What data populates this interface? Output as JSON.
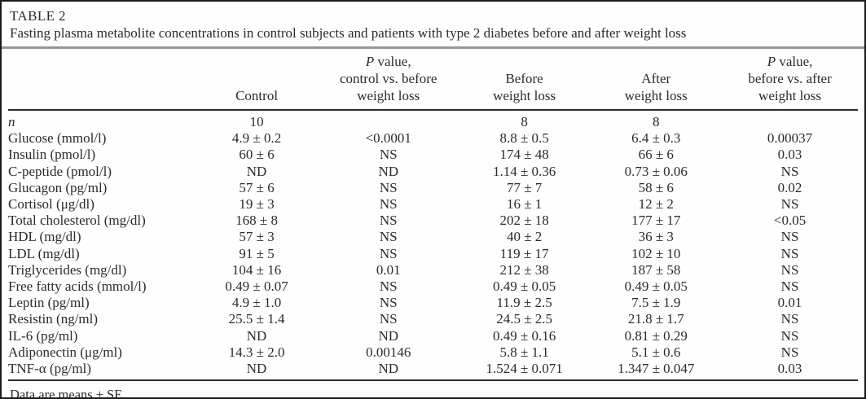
{
  "title": "TABLE 2",
  "caption": "Fasting plasma metabolite concentrations in control subjects and patients with type 2 diabetes before and after weight loss",
  "table": {
    "headers": [
      {
        "label": ""
      },
      {
        "line1": "Control"
      },
      {
        "line1_italic": "P",
        "line1_rest": " value,",
        "line2": "control vs. before",
        "line3": "weight loss"
      },
      {
        "line1": "Before",
        "line2": "weight loss"
      },
      {
        "line1": "After",
        "line2": "weight loss"
      },
      {
        "line1_italic": "P",
        "line1_rest": " value,",
        "line2": "before vs. after",
        "line3": "weight loss"
      }
    ],
    "rows": [
      {
        "label": "n",
        "italic_label": true,
        "values": [
          "10",
          "",
          "8",
          "8",
          ""
        ]
      },
      {
        "label": "Glucose (mmol/l)",
        "values": [
          "4.9 ± 0.2",
          "<0.0001",
          "8.8 ± 0.5",
          "6.4 ± 0.3",
          "0.00037"
        ]
      },
      {
        "label": "Insulin (pmol/l)",
        "values": [
          "60 ± 6",
          "NS",
          "174 ± 48",
          "66 ± 6",
          "0.03"
        ]
      },
      {
        "label": "C-peptide (pmol/l)",
        "values": [
          "ND",
          "ND",
          "1.14 ± 0.36",
          "0.73 ± 0.06",
          "NS"
        ]
      },
      {
        "label": "Glucagon (pg/ml)",
        "values": [
          "57 ± 6",
          "NS",
          "77 ± 7",
          "58 ± 6",
          "0.02"
        ]
      },
      {
        "label": "Cortisol (μg/dl)",
        "values": [
          "19 ± 3",
          "NS",
          "16 ± 1",
          "12 ± 2",
          "NS"
        ]
      },
      {
        "label": "Total cholesterol (mg/dl)",
        "values": [
          "168 ± 8",
          "NS",
          "202 ± 18",
          "177 ± 17",
          "<0.05"
        ]
      },
      {
        "label": "HDL (mg/dl)",
        "values": [
          "57 ± 3",
          "NS",
          "40 ± 2",
          "36 ± 3",
          "NS"
        ]
      },
      {
        "label": "LDL (mg/dl)",
        "values": [
          "91 ± 5",
          "NS",
          "119 ± 17",
          "102 ± 10",
          "NS"
        ]
      },
      {
        "label": "Triglycerides (mg/dl)",
        "values": [
          "104 ± 16",
          "0.01",
          "212 ± 38",
          "187 ± 58",
          "NS"
        ]
      },
      {
        "label": "Free fatty acids (mmol/l)",
        "values": [
          "0.49 ± 0.07",
          "NS",
          "0.49 ± 0.05",
          "0.49 ± 0.05",
          "NS"
        ]
      },
      {
        "label": "Leptin (pg/ml)",
        "values": [
          "4.9 ± 1.0",
          "NS",
          "11.9 ± 2.5",
          "7.5 ± 1.9",
          "0.01"
        ]
      },
      {
        "label": "Resistin (ng/ml)",
        "values": [
          "25.5 ± 1.4",
          "NS",
          "24.5 ± 2.5",
          "21.8 ± 1.7",
          "NS"
        ]
      },
      {
        "label": "IL-6 (pg/ml)",
        "values": [
          "ND",
          "ND",
          "0.49 ± 0.16",
          "0.81 ± 0.29",
          "NS"
        ]
      },
      {
        "label": "Adiponectin (μg/ml)",
        "values": [
          "14.3 ± 2.0",
          "0.00146",
          "5.8 ± 1.1",
          "5.1 ± 0.6",
          "NS"
        ]
      },
      {
        "label": "TNF-α (pg/ml)",
        "values": [
          "ND",
          "ND",
          "1.524 ± 0.071",
          "1.347 ± 0.047",
          "0.03"
        ]
      }
    ],
    "footnote": "Data are means ± SE."
  }
}
